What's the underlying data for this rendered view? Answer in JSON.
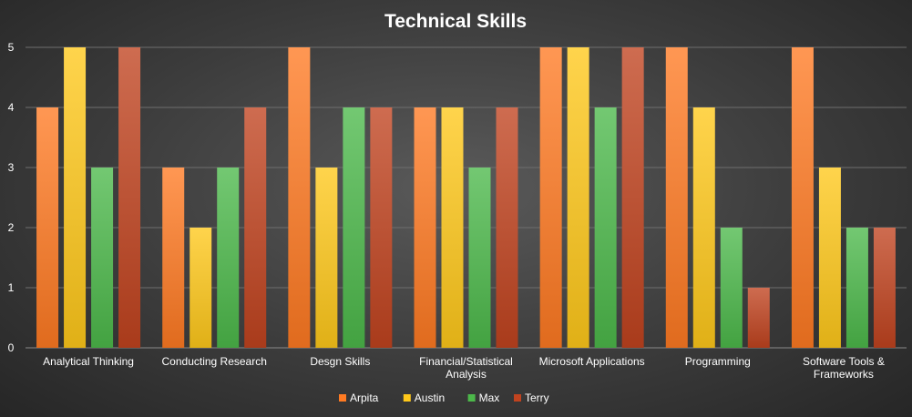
{
  "chart_data": {
    "type": "bar",
    "title": "Technical Skills",
    "xlabel": "",
    "ylabel": "",
    "ylim": [
      0,
      5
    ],
    "yticks": [
      0,
      1,
      2,
      3,
      4,
      5
    ],
    "grid": true,
    "legend_position": "bottom",
    "categories": [
      [
        "Analytical Thinking"
      ],
      [
        "Conducting Research"
      ],
      [
        "Desgn Skills"
      ],
      [
        "Financial/Statistical",
        "Analysis"
      ],
      [
        "Microsoft Applications"
      ],
      [
        "Programming"
      ],
      [
        "Software Tools &",
        "Frameworks"
      ]
    ],
    "series": [
      {
        "name": "Arpita",
        "color": "#ff7a22",
        "values": [
          4,
          3,
          5,
          4,
          5,
          5,
          5
        ]
      },
      {
        "name": "Austin",
        "color": "#ffc81a",
        "values": [
          5,
          2,
          3,
          4,
          5,
          4,
          3
        ]
      },
      {
        "name": "Max",
        "color": "#4cb84a",
        "values": [
          3,
          3,
          4,
          3,
          4,
          2,
          2
        ]
      },
      {
        "name": "Terry",
        "color": "#c0431f",
        "values": [
          5,
          4,
          4,
          4,
          5,
          1,
          2
        ]
      }
    ]
  }
}
